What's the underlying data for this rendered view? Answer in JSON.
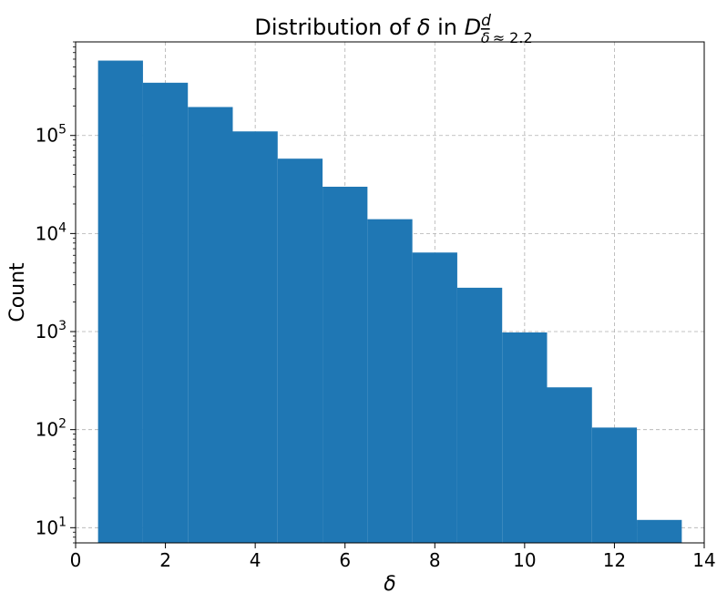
{
  "chart_data": {
    "type": "bar",
    "title": {
      "prefix": "Distribution of ",
      "symbol": "δ",
      "mid": " in ",
      "var": "D",
      "sup": "d",
      "sub_symbol": "δ",
      "sub_rest": "≈ 2.2"
    },
    "xlabel": "δ",
    "ylabel": "Count",
    "xlim": [
      0,
      14
    ],
    "ylim": [
      7,
      900000
    ],
    "yscale": "log",
    "grid": true,
    "bar_color": "#1f77b4",
    "bin_width": 1,
    "x": [
      1,
      2,
      3,
      4,
      5,
      6,
      7,
      8,
      9,
      10,
      11,
      12,
      13
    ],
    "values": [
      580000,
      345000,
      195000,
      110000,
      58000,
      30000,
      14000,
      6400,
      2800,
      980,
      270,
      105,
      12
    ],
    "xticks": [
      0,
      2,
      4,
      6,
      8,
      10,
      12,
      14
    ],
    "yticks": [
      {
        "value": 10,
        "base": "10",
        "exp": "1"
      },
      {
        "value": 100,
        "base": "10",
        "exp": "2"
      },
      {
        "value": 1000,
        "base": "10",
        "exp": "3"
      },
      {
        "value": 10000,
        "base": "10",
        "exp": "4"
      },
      {
        "value": 100000,
        "base": "10",
        "exp": "5"
      }
    ]
  }
}
